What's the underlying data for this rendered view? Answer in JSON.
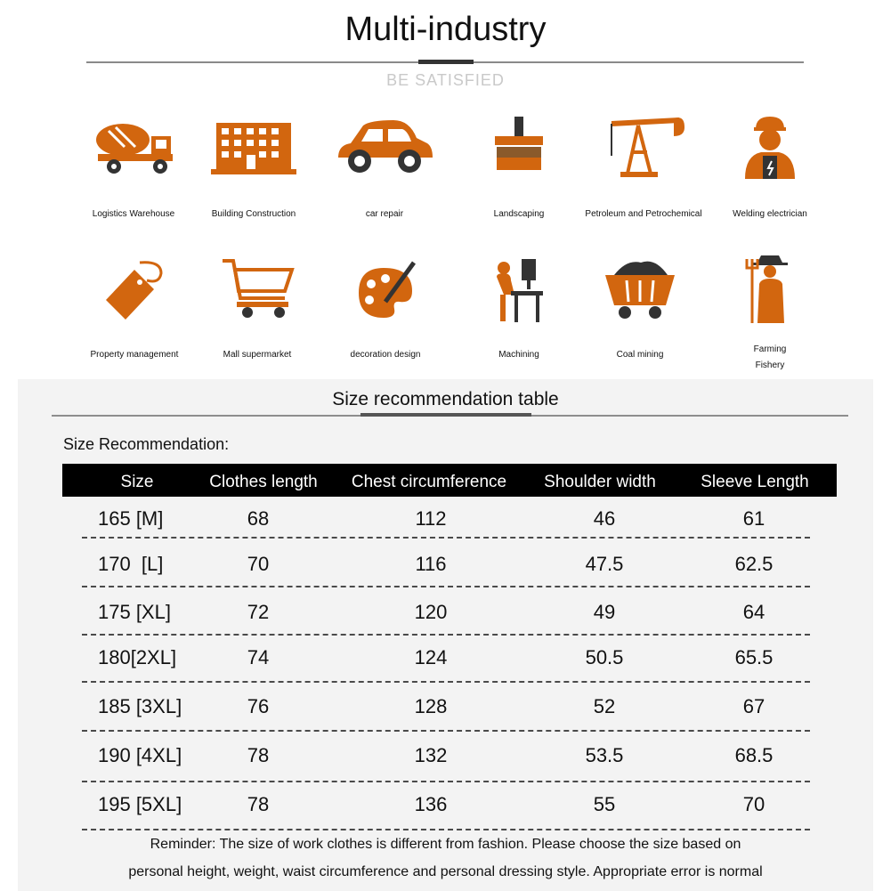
{
  "header": {
    "title": "Multi-industry",
    "subtitle": "BE  SATISFIED"
  },
  "accent_color": "#d2660f",
  "industries": [
    {
      "label": "Logistics Warehouse",
      "icon": "mixer-truck-icon"
    },
    {
      "label": "Building Construction",
      "icon": "building-icon"
    },
    {
      "label": "car repair",
      "icon": "car-icon"
    },
    {
      "label": "Landscaping",
      "icon": "brush-icon"
    },
    {
      "label": "Petroleum and Petrochemical",
      "icon": "oil-pump-icon"
    },
    {
      "label": "Welding electrician",
      "icon": "worker-icon"
    },
    {
      "label": "Property management",
      "icon": "price-tag-icon"
    },
    {
      "label": "Mall supermarket",
      "icon": "shopping-cart-icon"
    },
    {
      "label": "decoration design",
      "icon": "paint-palette-icon"
    },
    {
      "label": "Machining",
      "icon": "drill-press-icon"
    },
    {
      "label": "Coal mining",
      "icon": "mine-cart-icon"
    },
    {
      "label": "Farming",
      "label2": "Fishery",
      "icon": "farmer-icon"
    }
  ],
  "size_section": {
    "title": "Size recommendation table",
    "subtitle": "Size Recommendation:",
    "headers": [
      "Size",
      "Clothes length",
      "Chest circumference",
      "Shoulder width",
      "Sleeve Length"
    ],
    "rows": [
      {
        "size": "165 [M]",
        "length": "68",
        "chest": "112",
        "shoulder": "46",
        "sleeve": "61"
      },
      {
        "size": "170  [L]",
        "length": "70",
        "chest": "116",
        "shoulder": "47.5",
        "sleeve": "62.5"
      },
      {
        "size": "175 [XL]",
        "length": "72",
        "chest": "120",
        "shoulder": "49",
        "sleeve": "64"
      },
      {
        "size": "180[2XL]",
        "length": "74",
        "chest": "124",
        "shoulder": "50.5",
        "sleeve": "65.5"
      },
      {
        "size": "185 [3XL]",
        "length": "76",
        "chest": "128",
        "shoulder": "52",
        "sleeve": "67"
      },
      {
        "size": "190 [4XL]",
        "length": "78",
        "chest": "132",
        "shoulder": "53.5",
        "sleeve": "68.5"
      },
      {
        "size": "195 [5XL]",
        "length": "78",
        "chest": "136",
        "shoulder": "55",
        "sleeve": "70"
      }
    ],
    "reminder_line1": "Reminder: The size of work clothes is different from fashion. Please choose the size based on",
    "reminder_line2": "personal height, weight, waist circumference and personal dressing style. Appropriate error is normal"
  }
}
